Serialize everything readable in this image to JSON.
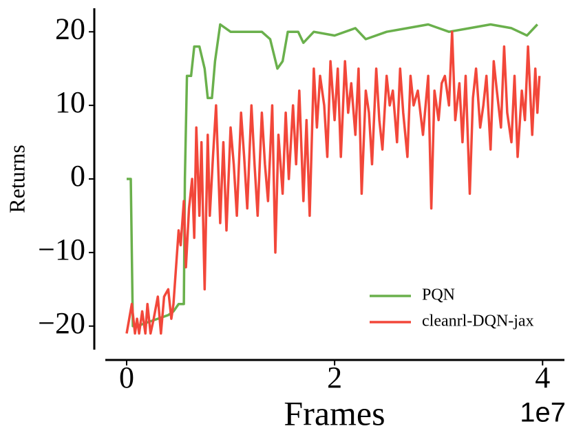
{
  "chart_data": {
    "type": "line",
    "xlabel": "Frames",
    "ylabel": "Returns",
    "x_offset_label": "1e7",
    "xlim": [
      -0.205,
      4.21
    ],
    "ylim": [
      -23.2,
      23.2
    ],
    "xticks": [
      0,
      2,
      4
    ],
    "yticks": [
      {
        "value": -20,
        "label": "−20"
      },
      {
        "value": -10,
        "label": "−10"
      },
      0,
      10,
      20
    ],
    "grid": false,
    "legend": "lower right",
    "series": [
      {
        "name": "PQN",
        "color": "#6ab04c",
        "x": [
          0,
          0.04,
          0.06,
          0.1,
          0.2,
          0.3,
          0.4,
          0.45,
          0.5,
          0.55,
          0.56,
          0.58,
          0.62,
          0.65,
          0.7,
          0.75,
          0.78,
          0.82,
          0.85,
          0.9,
          1.0,
          1.3,
          1.38,
          1.45,
          1.5,
          1.55,
          1.65,
          1.7,
          1.8,
          2.0,
          2.2,
          2.3,
          2.5,
          2.7,
          2.9,
          3.1,
          3.3,
          3.5,
          3.7,
          3.85,
          3.95
        ],
        "values": [
          0,
          0,
          -20,
          -20,
          -19.5,
          -19,
          -18.5,
          -18,
          -17,
          -17,
          0,
          14,
          14,
          18,
          18,
          15,
          11,
          11,
          16,
          21,
          20,
          20,
          19,
          15,
          16,
          20,
          20,
          18.5,
          20,
          19.5,
          20.5,
          19,
          20,
          20.5,
          21,
          20,
          20.5,
          21,
          20.5,
          19.5,
          21
        ]
      },
      {
        "name": "cleanrl-DQN-jax",
        "color": "#f2473a",
        "x": [
          0,
          0.05,
          0.08,
          0.1,
          0.12,
          0.15,
          0.18,
          0.2,
          0.23,
          0.26,
          0.3,
          0.33,
          0.36,
          0.4,
          0.43,
          0.45,
          0.5,
          0.52,
          0.55,
          0.57,
          0.6,
          0.63,
          0.65,
          0.67,
          0.7,
          0.72,
          0.75,
          0.78,
          0.8,
          0.83,
          0.86,
          0.9,
          0.93,
          0.96,
          1.0,
          1.03,
          1.06,
          1.1,
          1.13,
          1.16,
          1.2,
          1.23,
          1.26,
          1.3,
          1.33,
          1.36,
          1.4,
          1.43,
          1.46,
          1.5,
          1.53,
          1.56,
          1.6,
          1.63,
          1.66,
          1.7,
          1.73,
          1.76,
          1.8,
          1.83,
          1.86,
          1.9,
          1.93,
          1.96,
          2.0,
          2.03,
          2.06,
          2.1,
          2.13,
          2.16,
          2.2,
          2.23,
          2.26,
          2.3,
          2.33,
          2.36,
          2.4,
          2.43,
          2.46,
          2.5,
          2.53,
          2.56,
          2.6,
          2.63,
          2.66,
          2.7,
          2.73,
          2.76,
          2.8,
          2.85,
          2.9,
          2.93,
          2.96,
          3.0,
          3.03,
          3.06,
          3.1,
          3.13,
          3.16,
          3.2,
          3.23,
          3.26,
          3.3,
          3.33,
          3.36,
          3.4,
          3.43,
          3.46,
          3.5,
          3.53,
          3.56,
          3.6,
          3.63,
          3.66,
          3.7,
          3.73,
          3.76,
          3.8,
          3.83,
          3.86,
          3.9,
          3.93,
          3.95,
          3.97
        ],
        "values": [
          -21,
          -17,
          -21,
          -19,
          -21,
          -18,
          -21,
          -17,
          -21,
          -19,
          -16,
          -21,
          -16,
          -15,
          -19,
          -17,
          -7,
          -9,
          -3,
          -12,
          -4,
          0,
          -8,
          7,
          -5,
          5,
          -15,
          6,
          -5,
          3,
          10,
          -6,
          5,
          -7,
          7,
          2,
          -5,
          9,
          3,
          -4,
          10,
          2,
          -5,
          9,
          2,
          -3,
          10,
          -10,
          6,
          -2,
          9,
          0,
          10,
          2,
          12,
          -3,
          8,
          -5,
          15,
          7,
          14,
          10,
          3,
          16,
          8,
          15,
          3,
          16,
          9,
          13,
          6,
          15,
          -2,
          12,
          9,
          2,
          15,
          8,
          4,
          14,
          10,
          12,
          5,
          15,
          9,
          3,
          14,
          10,
          12,
          6,
          14,
          -4,
          12,
          8,
          13,
          14,
          10,
          20,
          8,
          13,
          5,
          14,
          -2,
          11,
          15,
          7,
          10,
          14,
          4,
          16,
          12,
          7,
          18,
          9,
          5,
          14,
          3,
          12,
          8,
          18,
          6,
          15,
          9,
          14
        ]
      }
    ]
  }
}
